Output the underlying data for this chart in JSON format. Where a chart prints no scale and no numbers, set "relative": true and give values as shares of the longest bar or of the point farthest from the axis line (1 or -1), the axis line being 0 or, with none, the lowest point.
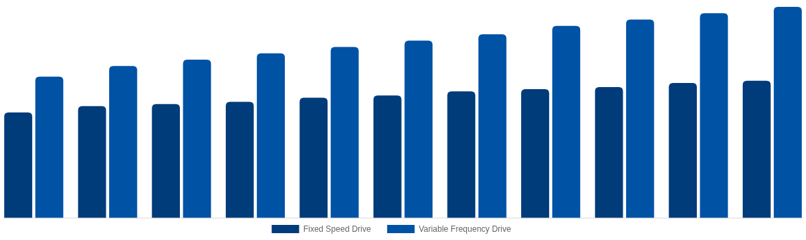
{
  "chart_data": {
    "type": "bar",
    "relative": true,
    "categories": [
      null,
      null,
      null,
      null,
      null,
      null,
      null,
      null,
      null,
      null,
      null
    ],
    "series": [
      {
        "name": "Fixed Speed Drive",
        "color": "#003b7a",
        "values": [
          0.5,
          0.53,
          0.54,
          0.55,
          0.57,
          0.58,
          0.6,
          0.61,
          0.62,
          0.64,
          0.65
        ]
      },
      {
        "name": "Variable Frequency Drive",
        "color": "#0052a5",
        "values": [
          0.67,
          0.72,
          0.75,
          0.78,
          0.81,
          0.84,
          0.87,
          0.91,
          0.94,
          0.97,
          1
        ]
      }
    ],
    "legend": "bottom"
  }
}
